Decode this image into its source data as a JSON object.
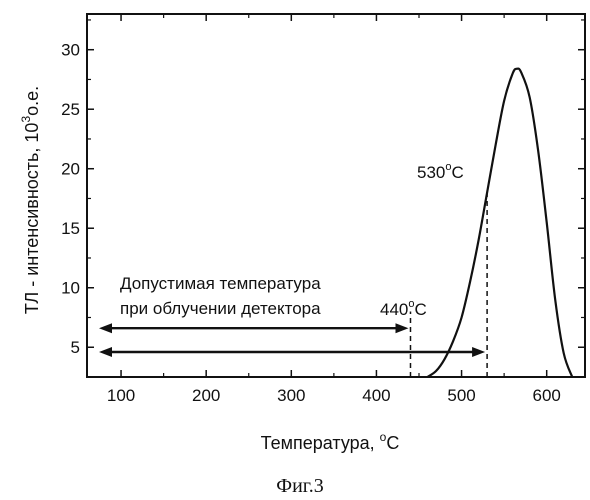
{
  "chart_data": {
    "type": "line",
    "xlabel": "Температура, ",
    "xlabel_unit": "C",
    "xlabel_unit_sup": "o",
    "ylabel": "ТЛ - интенсивность, 10",
    "ylabel_sup": "3",
    "ylabel_unit": "о.е.",
    "xlim": [
      60,
      645
    ],
    "ylim": [
      2.5,
      33
    ],
    "xticks": [
      100,
      200,
      300,
      400,
      500,
      600
    ],
    "yticks": [
      5,
      10,
      15,
      20,
      25,
      30
    ],
    "series": [
      {
        "x": [
          460,
          470,
          480,
          490,
          500,
          510,
          520,
          530,
          540,
          550,
          560,
          565,
          570,
          580,
          590,
          600,
          610,
          620,
          630
        ],
        "y": [
          2.5,
          3.0,
          4.0,
          5.5,
          7.5,
          10.5,
          14.0,
          18.0,
          22.0,
          25.7,
          28.0,
          28.4,
          28.1,
          26.0,
          21.5,
          15.5,
          9.0,
          4.5,
          2.5
        ]
      }
    ],
    "annotations": {
      "peak_label": "530",
      "peak_label_unit": "C",
      "peak_label_sup": "o",
      "peak_marker_x": 530,
      "limit_label": "440",
      "limit_label_unit": "C",
      "limit_label_sup": "o",
      "limit_marker_x": 440,
      "range_text_line1": "Допустимая температура",
      "range_text_line2": "при облучении детектора",
      "arrow_upper": {
        "x_from": 60,
        "x_to": 440,
        "y": 6.6
      },
      "arrow_lower": {
        "x_from": 60,
        "x_to": 530,
        "y": 4.6
      }
    }
  },
  "caption": "Фиг.3"
}
